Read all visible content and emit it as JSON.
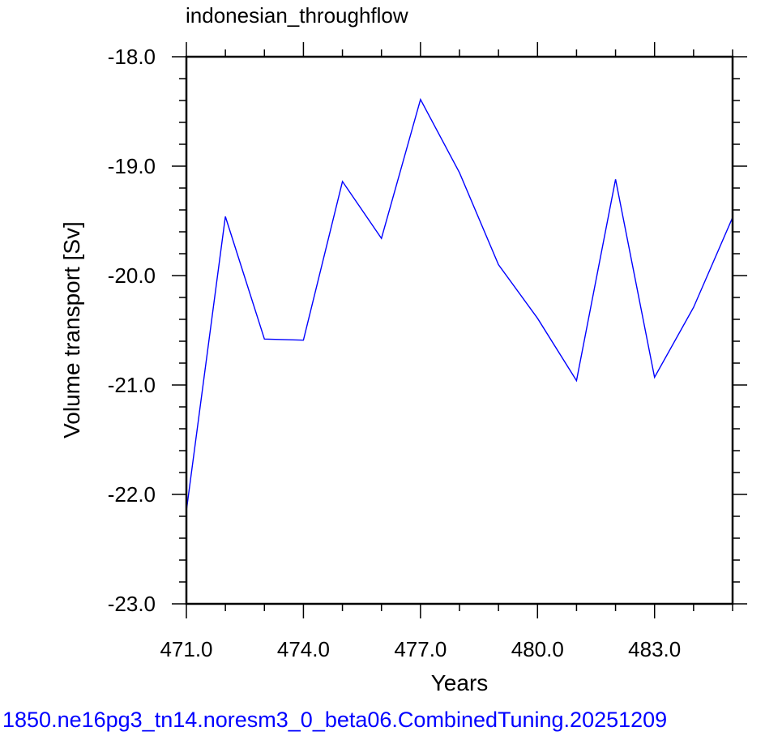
{
  "chart_data": {
    "type": "line",
    "title": "indonesian_throughflow",
    "xlabel": "Years",
    "ylabel": "Volume transport [Sv]",
    "footer": "1850.ne16pg3_tn14.noresm3_0_beta06.CombinedTuning.20251209",
    "xlim": [
      471,
      485
    ],
    "ylim": [
      -23,
      -18
    ],
    "x_ticks": [
      471,
      474,
      477,
      480,
      483
    ],
    "x_tick_labels": [
      "471.0",
      "474.0",
      "477.0",
      "480.0",
      "483.0"
    ],
    "y_ticks": [
      -18,
      -19,
      -20,
      -21,
      -22,
      -23
    ],
    "y_tick_labels": [
      "-18.0",
      "-19.0",
      "-20.0",
      "-21.0",
      "-22.0",
      "-23.0"
    ],
    "grid": false,
    "series": [
      {
        "color": "#0000ff",
        "x": [
          471,
          472,
          473,
          474,
          475,
          476,
          477,
          478,
          479,
          480,
          481,
          482,
          483,
          484,
          485
        ],
        "y": [
          -22.15,
          -19.46,
          -20.58,
          -20.59,
          -19.14,
          -19.66,
          -18.39,
          -19.06,
          -19.9,
          -20.39,
          -20.96,
          -19.12,
          -20.93,
          -20.29,
          -19.47
        ]
      }
    ]
  }
}
